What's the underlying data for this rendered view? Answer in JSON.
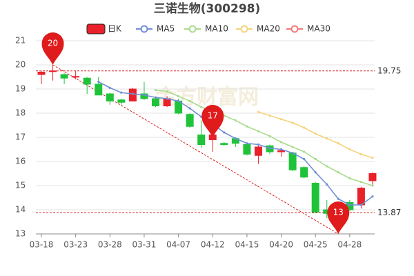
{
  "chart_data": {
    "type": "candlestick",
    "title": "三诺生物(300298)",
    "watermark": "金方财富网",
    "categories": [
      "03-18",
      null,
      null,
      "03-23",
      null,
      null,
      "03-28",
      null,
      null,
      "03-31",
      null,
      null,
      "04-07",
      null,
      null,
      "04-12",
      null,
      null,
      "04-15",
      null,
      null,
      "04-20",
      null,
      null,
      "04-25",
      null,
      null,
      "04-28",
      null,
      null
    ],
    "ylim": [
      13,
      21
    ],
    "yticks": [
      13,
      14,
      15,
      16,
      17,
      18,
      19,
      20,
      21
    ],
    "grid": true,
    "series": [
      {
        "name": "日K",
        "type": "candlestick",
        "up_color": "#e8212b",
        "down_color": "#1fc33a",
        "open": [
          19.6,
          19.72,
          19.6,
          19.5,
          19.45,
          19.2,
          18.8,
          18.55,
          18.5,
          18.8,
          18.6,
          18.3,
          18.5,
          17.95,
          17.1,
          16.9,
          16.75,
          16.95,
          16.7,
          16.25,
          16.65,
          16.4,
          16.35,
          15.75,
          15.1,
          14.0,
          13.7,
          14.3,
          14.2,
          15.2
        ],
        "high": [
          19.75,
          20.0,
          19.65,
          19.75,
          19.5,
          19.5,
          18.85,
          18.6,
          19.05,
          19.3,
          18.65,
          18.7,
          18.6,
          18.0,
          17.7,
          17.15,
          16.8,
          17.0,
          16.75,
          16.65,
          16.7,
          16.55,
          16.4,
          15.8,
          15.15,
          14.4,
          14.0,
          14.4,
          14.95,
          15.55
        ],
        "low": [
          19.2,
          19.35,
          19.2,
          19.4,
          18.8,
          18.75,
          18.35,
          18.3,
          18.5,
          18.55,
          18.25,
          18.25,
          17.95,
          17.4,
          16.55,
          16.4,
          16.65,
          16.6,
          16.25,
          15.9,
          16.3,
          16.2,
          15.6,
          15.3,
          13.87,
          13.65,
          13.3,
          13.95,
          14.05,
          15.0
        ],
        "close": [
          19.7,
          19.75,
          19.45,
          19.52,
          19.2,
          18.75,
          18.5,
          18.45,
          19.0,
          18.6,
          18.3,
          18.6,
          18.0,
          17.45,
          16.7,
          17.1,
          16.7,
          16.75,
          16.3,
          16.6,
          16.4,
          16.45,
          15.65,
          15.35,
          13.9,
          13.85,
          13.9,
          14.0,
          14.9,
          15.5
        ]
      },
      {
        "name": "MA5",
        "type": "line",
        "color": "#6f8fd6",
        "values": [
          null,
          null,
          null,
          null,
          null,
          19.3,
          19.05,
          18.85,
          18.8,
          18.75,
          18.65,
          18.6,
          18.5,
          18.2,
          17.85,
          17.55,
          17.2,
          16.95,
          16.75,
          16.7,
          16.55,
          16.5,
          16.35,
          16.1,
          15.55,
          15.05,
          14.45,
          14.2,
          14.2,
          14.55
        ]
      },
      {
        "name": "MA10",
        "type": "line",
        "color": "#a8dc8c",
        "values": [
          null,
          null,
          null,
          null,
          null,
          null,
          null,
          null,
          null,
          null,
          18.95,
          18.9,
          18.7,
          18.5,
          18.25,
          18.1,
          17.9,
          17.7,
          17.45,
          17.25,
          17.05,
          16.8,
          16.6,
          16.4,
          16.1,
          15.8,
          15.55,
          15.3,
          15.15,
          15.0
        ]
      },
      {
        "name": "MA20",
        "type": "line",
        "color": "#f5d37a",
        "values": [
          null,
          null,
          null,
          null,
          null,
          null,
          null,
          null,
          null,
          null,
          null,
          null,
          null,
          null,
          null,
          null,
          null,
          null,
          null,
          18.05,
          17.9,
          17.75,
          17.6,
          17.4,
          17.15,
          16.95,
          16.75,
          16.5,
          16.3,
          16.15
        ]
      },
      {
        "name": "MA30",
        "type": "line",
        "color": "#f27a7a",
        "values": [
          null,
          null,
          null,
          null,
          null,
          null,
          null,
          null,
          null,
          null,
          null,
          null,
          null,
          null,
          null,
          null,
          null,
          null,
          null,
          null,
          null,
          null,
          null,
          null,
          null,
          null,
          null,
          null,
          null,
          null
        ]
      }
    ],
    "reference_lines": [
      {
        "value": 19.75,
        "color": "#d42020"
      },
      {
        "value": 13.87,
        "color": "#d42020"
      }
    ],
    "pins": [
      {
        "index": 1,
        "value": 20
      },
      {
        "index": 15,
        "value": 17
      },
      {
        "index": 26,
        "value": 13
      }
    ],
    "pin_color": "#e01b1b"
  }
}
